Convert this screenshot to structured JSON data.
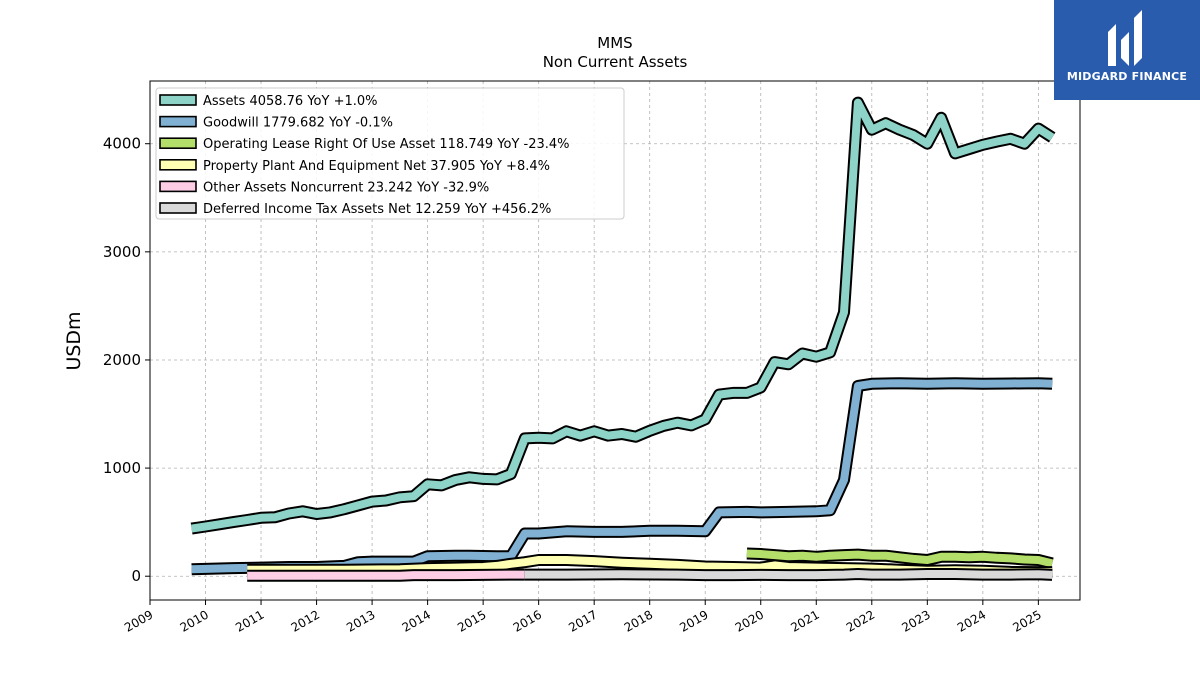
{
  "brand": {
    "name": "MIDGARD FINANCE",
    "bg_color": "#2a5cae"
  },
  "chart_data": {
    "type": "line",
    "title": "MMS",
    "subtitle": "Non Current  Assets",
    "ylabel": "USDm",
    "xlabel": "",
    "xlim": [
      2009.0,
      2025.75
    ],
    "ylim": [
      -220,
      4580
    ],
    "grid": true,
    "legend_position": "top-left",
    "x_ticks": [
      "2009",
      "2010",
      "2011",
      "2012",
      "2013",
      "2014",
      "2015",
      "2016",
      "2017",
      "2018",
      "2019",
      "2020",
      "2021",
      "2022",
      "2023",
      "2024",
      "2025"
    ],
    "y_ticks": [
      0,
      1000,
      2000,
      3000,
      4000
    ],
    "series": [
      {
        "name": "Assets  4058.76 YoY +1.0%",
        "color": "#8dd3c7",
        "points": [
          [
            2009.75,
            440
          ],
          [
            2010.0,
            460
          ],
          [
            2010.25,
            480
          ],
          [
            2010.5,
            500
          ],
          [
            2010.75,
            520
          ],
          [
            2011.0,
            540
          ],
          [
            2011.25,
            545
          ],
          [
            2011.5,
            580
          ],
          [
            2011.75,
            600
          ],
          [
            2012.0,
            575
          ],
          [
            2012.25,
            590
          ],
          [
            2012.5,
            620
          ],
          [
            2012.75,
            655
          ],
          [
            2013.0,
            690
          ],
          [
            2013.25,
            700
          ],
          [
            2013.5,
            730
          ],
          [
            2013.75,
            740
          ],
          [
            2014.0,
            850
          ],
          [
            2014.25,
            840
          ],
          [
            2014.5,
            890
          ],
          [
            2014.75,
            915
          ],
          [
            2015.0,
            900
          ],
          [
            2015.25,
            895
          ],
          [
            2015.5,
            945
          ],
          [
            2015.75,
            1275
          ],
          [
            2016.0,
            1280
          ],
          [
            2016.25,
            1275
          ],
          [
            2016.5,
            1340
          ],
          [
            2016.75,
            1300
          ],
          [
            2017.0,
            1340
          ],
          [
            2017.25,
            1300
          ],
          [
            2017.5,
            1315
          ],
          [
            2017.75,
            1290
          ],
          [
            2018.0,
            1345
          ],
          [
            2018.25,
            1390
          ],
          [
            2018.5,
            1420
          ],
          [
            2018.75,
            1395
          ],
          [
            2019.0,
            1450
          ],
          [
            2019.25,
            1680
          ],
          [
            2019.5,
            1695
          ],
          [
            2019.75,
            1695
          ],
          [
            2020.0,
            1745
          ],
          [
            2020.25,
            1980
          ],
          [
            2020.5,
            1960
          ],
          [
            2020.75,
            2060
          ],
          [
            2021.0,
            2030
          ],
          [
            2021.25,
            2070
          ],
          [
            2021.5,
            2440
          ],
          [
            2021.75,
            4380
          ],
          [
            2022.0,
            4130
          ],
          [
            2022.25,
            4190
          ],
          [
            2022.5,
            4130
          ],
          [
            2022.75,
            4080
          ],
          [
            2023.0,
            4000
          ],
          [
            2023.25,
            4240
          ],
          [
            2023.5,
            3910
          ],
          [
            2023.75,
            3950
          ],
          [
            2024.0,
            3990
          ],
          [
            2024.25,
            4020
          ],
          [
            2024.5,
            4045
          ],
          [
            2024.75,
            4000
          ],
          [
            2025.0,
            4140
          ],
          [
            2025.25,
            4058.76
          ]
        ]
      },
      {
        "name": "Goodwill  1779.682 YoY -0.1%",
        "color": "#80b1d3",
        "points": [
          [
            2009.75,
            65
          ],
          [
            2010.5,
            75
          ],
          [
            2011.0,
            80
          ],
          [
            2011.5,
            85
          ],
          [
            2012.0,
            85
          ],
          [
            2012.5,
            95
          ],
          [
            2012.75,
            130
          ],
          [
            2013.0,
            135
          ],
          [
            2013.5,
            135
          ],
          [
            2013.75,
            135
          ],
          [
            2014.0,
            185
          ],
          [
            2014.5,
            190
          ],
          [
            2014.75,
            190
          ],
          [
            2015.25,
            185
          ],
          [
            2015.5,
            185
          ],
          [
            2015.75,
            395
          ],
          [
            2016.0,
            395
          ],
          [
            2016.5,
            415
          ],
          [
            2017.0,
            410
          ],
          [
            2017.5,
            410
          ],
          [
            2018.0,
            420
          ],
          [
            2018.5,
            420
          ],
          [
            2019.0,
            415
          ],
          [
            2019.25,
            590
          ],
          [
            2019.75,
            595
          ],
          [
            2020.0,
            590
          ],
          [
            2020.5,
            595
          ],
          [
            2021.0,
            600
          ],
          [
            2021.25,
            610
          ],
          [
            2021.5,
            890
          ],
          [
            2021.75,
            1760
          ],
          [
            2022.0,
            1780
          ],
          [
            2022.5,
            1785
          ],
          [
            2023.0,
            1780
          ],
          [
            2023.5,
            1785
          ],
          [
            2024.0,
            1780
          ],
          [
            2024.5,
            1782
          ],
          [
            2025.0,
            1785
          ],
          [
            2025.25,
            1779.682
          ]
        ]
      },
      {
        "name": "Operating Lease Right Of Use Asset  118.749 YoY -23.4%",
        "color": "#b3de69",
        "points": [
          [
            2019.75,
            210
          ],
          [
            2020.0,
            205
          ],
          [
            2020.25,
            195
          ],
          [
            2020.5,
            185
          ],
          [
            2020.75,
            190
          ],
          [
            2021.0,
            180
          ],
          [
            2021.25,
            190
          ],
          [
            2021.5,
            195
          ],
          [
            2021.75,
            200
          ],
          [
            2022.0,
            190
          ],
          [
            2022.25,
            190
          ],
          [
            2022.5,
            175
          ],
          [
            2022.75,
            160
          ],
          [
            2023.0,
            150
          ],
          [
            2023.25,
            180
          ],
          [
            2023.5,
            180
          ],
          [
            2023.75,
            175
          ],
          [
            2024.0,
            180
          ],
          [
            2024.25,
            170
          ],
          [
            2024.5,
            165
          ],
          [
            2024.75,
            155
          ],
          [
            2025.0,
            150
          ],
          [
            2025.25,
            118.749
          ]
        ]
      },
      {
        "name": "Property Plant And Equipment Net  37.905 YoY +8.4%",
        "color": "#ffffb3",
        "points": [
          [
            2010.75,
            60
          ],
          [
            2011.5,
            60
          ],
          [
            2012.5,
            60
          ],
          [
            2013.5,
            65
          ],
          [
            2014.0,
            75
          ],
          [
            2014.5,
            80
          ],
          [
            2015.0,
            85
          ],
          [
            2015.25,
            95
          ],
          [
            2015.5,
            115
          ],
          [
            2015.75,
            130
          ],
          [
            2016.0,
            150
          ],
          [
            2016.5,
            150
          ],
          [
            2017.0,
            140
          ],
          [
            2017.5,
            125
          ],
          [
            2018.0,
            115
          ],
          [
            2018.5,
            105
          ],
          [
            2019.0,
            90
          ],
          [
            2019.5,
            85
          ],
          [
            2020.0,
            80
          ],
          [
            2020.25,
            100
          ],
          [
            2020.5,
            85
          ],
          [
            2021.0,
            80
          ],
          [
            2021.5,
            75
          ],
          [
            2022.0,
            70
          ],
          [
            2022.5,
            60
          ],
          [
            2023.0,
            50
          ],
          [
            2023.5,
            55
          ],
          [
            2024.0,
            50
          ],
          [
            2024.5,
            40
          ],
          [
            2025.0,
            38
          ],
          [
            2025.25,
            37.905
          ]
        ]
      },
      {
        "name": "Other Assets Noncurrent  23.242 YoY -32.9%",
        "color": "#fccde5",
        "points": [
          [
            2010.75,
            5
          ],
          [
            2011.5,
            5
          ],
          [
            2012.5,
            5
          ],
          [
            2013.5,
            5
          ],
          [
            2013.75,
            10
          ],
          [
            2014.5,
            10
          ],
          [
            2015.0,
            12
          ],
          [
            2015.5,
            15
          ],
          [
            2015.75,
            15
          ]
        ]
      },
      {
        "name": "Deferred Income Tax Assets Net  12.259 YoY +456.2%",
        "color": "#d9d9d9",
        "points": [
          [
            2015.75,
            15
          ],
          [
            2016.5,
            15
          ],
          [
            2017.5,
            18
          ],
          [
            2018.5,
            15
          ],
          [
            2019.0,
            10
          ],
          [
            2019.5,
            10
          ],
          [
            2020.0,
            12
          ],
          [
            2020.5,
            10
          ],
          [
            2021.0,
            10
          ],
          [
            2021.5,
            15
          ],
          [
            2021.75,
            20
          ],
          [
            2022.0,
            15
          ],
          [
            2022.5,
            15
          ],
          [
            2023.0,
            20
          ],
          [
            2023.5,
            20
          ],
          [
            2024.0,
            15
          ],
          [
            2024.5,
            15
          ],
          [
            2025.0,
            18
          ],
          [
            2025.25,
            12.259
          ]
        ]
      }
    ]
  }
}
